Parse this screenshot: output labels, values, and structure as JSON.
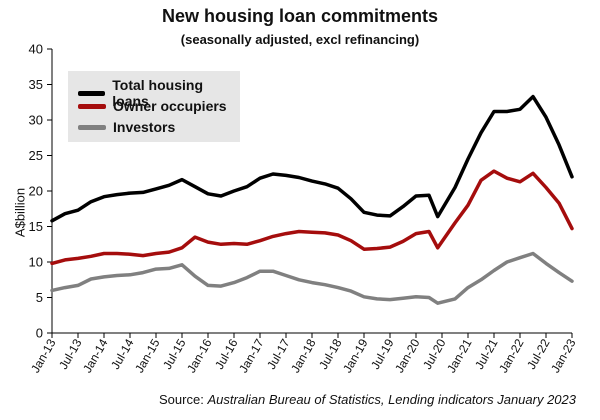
{
  "chart_data": {
    "type": "line",
    "title": "New housing loan commitments",
    "subtitle": "(seasonally adjusted, excl refinancing)",
    "ylabel": "A$billion",
    "xlabel": "",
    "ylim": [
      0,
      40
    ],
    "yticks": [
      "0",
      "5",
      "10",
      "15",
      "20",
      "25",
      "30",
      "35",
      "40"
    ],
    "xticks": [
      "Jan-13",
      "Jul-13",
      "Jan-14",
      "Jul-14",
      "Jan-15",
      "Jul-15",
      "Jan-16",
      "Jul-16",
      "Jan-17",
      "Jul-17",
      "Jan-18",
      "Jul-18",
      "Jan-19",
      "Jul-19",
      "Jan-20",
      "Jul-20",
      "Jan-21",
      "Jul-21",
      "Jan-22",
      "Jul-22",
      "Jan-23"
    ],
    "x_start": "Jan-13",
    "x_end": "Jan-23",
    "grid": false,
    "legend_position": "top-left",
    "source_prefix": "Source: ",
    "source_italic": "Australian Bureau of Statistics, Lending indicators January 2023",
    "series": [
      {
        "name": "Total housing loans",
        "color": "#000000",
        "points": [
          [
            "Jan-13",
            15.8
          ],
          [
            "Apr-13",
            16.8
          ],
          [
            "Jul-13",
            17.3
          ],
          [
            "Oct-13",
            18.5
          ],
          [
            "Jan-14",
            19.2
          ],
          [
            "Apr-14",
            19.5
          ],
          [
            "Jul-14",
            19.7
          ],
          [
            "Oct-14",
            19.8
          ],
          [
            "Jan-15",
            20.3
          ],
          [
            "Apr-15",
            20.8
          ],
          [
            "Jul-15",
            21.6
          ],
          [
            "Oct-15",
            20.6
          ],
          [
            "Jan-16",
            19.6
          ],
          [
            "Apr-16",
            19.3
          ],
          [
            "Jul-16",
            20.0
          ],
          [
            "Oct-16",
            20.6
          ],
          [
            "Jan-17",
            21.8
          ],
          [
            "Apr-17",
            22.4
          ],
          [
            "Jul-17",
            22.2
          ],
          [
            "Oct-17",
            21.9
          ],
          [
            "Jan-18",
            21.4
          ],
          [
            "Apr-18",
            21.0
          ],
          [
            "Jul-18",
            20.4
          ],
          [
            "Oct-18",
            18.9
          ],
          [
            "Jan-19",
            17.0
          ],
          [
            "Apr-19",
            16.6
          ],
          [
            "Jul-19",
            16.5
          ],
          [
            "Oct-19",
            17.8
          ],
          [
            "Jan-20",
            19.3
          ],
          [
            "Apr-20",
            19.4
          ],
          [
            "Jun-20",
            16.4
          ],
          [
            "Oct-20",
            20.5
          ],
          [
            "Jan-21",
            24.5
          ],
          [
            "Apr-21",
            28.2
          ],
          [
            "Jul-21",
            31.2
          ],
          [
            "Oct-21",
            31.2
          ],
          [
            "Jan-22",
            31.5
          ],
          [
            "Apr-22",
            33.3
          ],
          [
            "Jul-22",
            30.4
          ],
          [
            "Oct-22",
            26.5
          ],
          [
            "Jan-23",
            22.0
          ]
        ]
      },
      {
        "name": "Owner occupiers",
        "color": "#a50d0d",
        "points": [
          [
            "Jan-13",
            9.8
          ],
          [
            "Apr-13",
            10.3
          ],
          [
            "Jul-13",
            10.5
          ],
          [
            "Oct-13",
            10.8
          ],
          [
            "Jan-14",
            11.2
          ],
          [
            "Apr-14",
            11.2
          ],
          [
            "Jul-14",
            11.1
          ],
          [
            "Oct-14",
            10.9
          ],
          [
            "Jan-15",
            11.2
          ],
          [
            "Apr-15",
            11.4
          ],
          [
            "Jul-15",
            12.0
          ],
          [
            "Oct-15",
            13.5
          ],
          [
            "Jan-16",
            12.8
          ],
          [
            "Apr-16",
            12.5
          ],
          [
            "Jul-16",
            12.6
          ],
          [
            "Oct-16",
            12.5
          ],
          [
            "Jan-17",
            13.0
          ],
          [
            "Apr-17",
            13.6
          ],
          [
            "Jul-17",
            14.0
          ],
          [
            "Oct-17",
            14.3
          ],
          [
            "Jan-18",
            14.2
          ],
          [
            "Apr-18",
            14.1
          ],
          [
            "Jul-18",
            13.8
          ],
          [
            "Oct-18",
            13.0
          ],
          [
            "Jan-19",
            11.8
          ],
          [
            "Apr-19",
            11.9
          ],
          [
            "Jul-19",
            12.1
          ],
          [
            "Oct-19",
            12.9
          ],
          [
            "Jan-20",
            14.0
          ],
          [
            "Apr-20",
            14.3
          ],
          [
            "Jun-20",
            12.0
          ],
          [
            "Oct-20",
            15.5
          ],
          [
            "Jan-21",
            18.0
          ],
          [
            "Apr-21",
            21.5
          ],
          [
            "Jul-21",
            22.8
          ],
          [
            "Oct-21",
            21.8
          ],
          [
            "Jan-22",
            21.3
          ],
          [
            "Apr-22",
            22.5
          ],
          [
            "Jul-22",
            20.5
          ],
          [
            "Oct-22",
            18.3
          ],
          [
            "Jan-23",
            14.7
          ]
        ]
      },
      {
        "name": "Investors",
        "color": "#808080",
        "points": [
          [
            "Jan-13",
            6.0
          ],
          [
            "Apr-13",
            6.4
          ],
          [
            "Jul-13",
            6.7
          ],
          [
            "Oct-13",
            7.6
          ],
          [
            "Jan-14",
            7.9
          ],
          [
            "Apr-14",
            8.1
          ],
          [
            "Jul-14",
            8.2
          ],
          [
            "Oct-14",
            8.5
          ],
          [
            "Jan-15",
            9.0
          ],
          [
            "Apr-15",
            9.1
          ],
          [
            "Jul-15",
            9.6
          ],
          [
            "Oct-15",
            8.0
          ],
          [
            "Jan-16",
            6.7
          ],
          [
            "Apr-16",
            6.6
          ],
          [
            "Jul-16",
            7.1
          ],
          [
            "Oct-16",
            7.8
          ],
          [
            "Jan-17",
            8.7
          ],
          [
            "Apr-17",
            8.7
          ],
          [
            "Jul-17",
            8.1
          ],
          [
            "Oct-17",
            7.5
          ],
          [
            "Jan-18",
            7.1
          ],
          [
            "Apr-18",
            6.8
          ],
          [
            "Jul-18",
            6.4
          ],
          [
            "Oct-18",
            5.9
          ],
          [
            "Jan-19",
            5.1
          ],
          [
            "Apr-19",
            4.8
          ],
          [
            "Jul-19",
            4.7
          ],
          [
            "Oct-19",
            4.9
          ],
          [
            "Jan-20",
            5.1
          ],
          [
            "Apr-20",
            5.0
          ],
          [
            "Jun-20",
            4.2
          ],
          [
            "Oct-20",
            4.8
          ],
          [
            "Jan-21",
            6.4
          ],
          [
            "Apr-21",
            7.5
          ],
          [
            "Jul-21",
            8.8
          ],
          [
            "Oct-21",
            10.0
          ],
          [
            "Jan-22",
            10.6
          ],
          [
            "Apr-22",
            11.2
          ],
          [
            "Jul-22",
            9.8
          ],
          [
            "Oct-22",
            8.5
          ],
          [
            "Jan-23",
            7.3
          ]
        ]
      }
    ]
  }
}
